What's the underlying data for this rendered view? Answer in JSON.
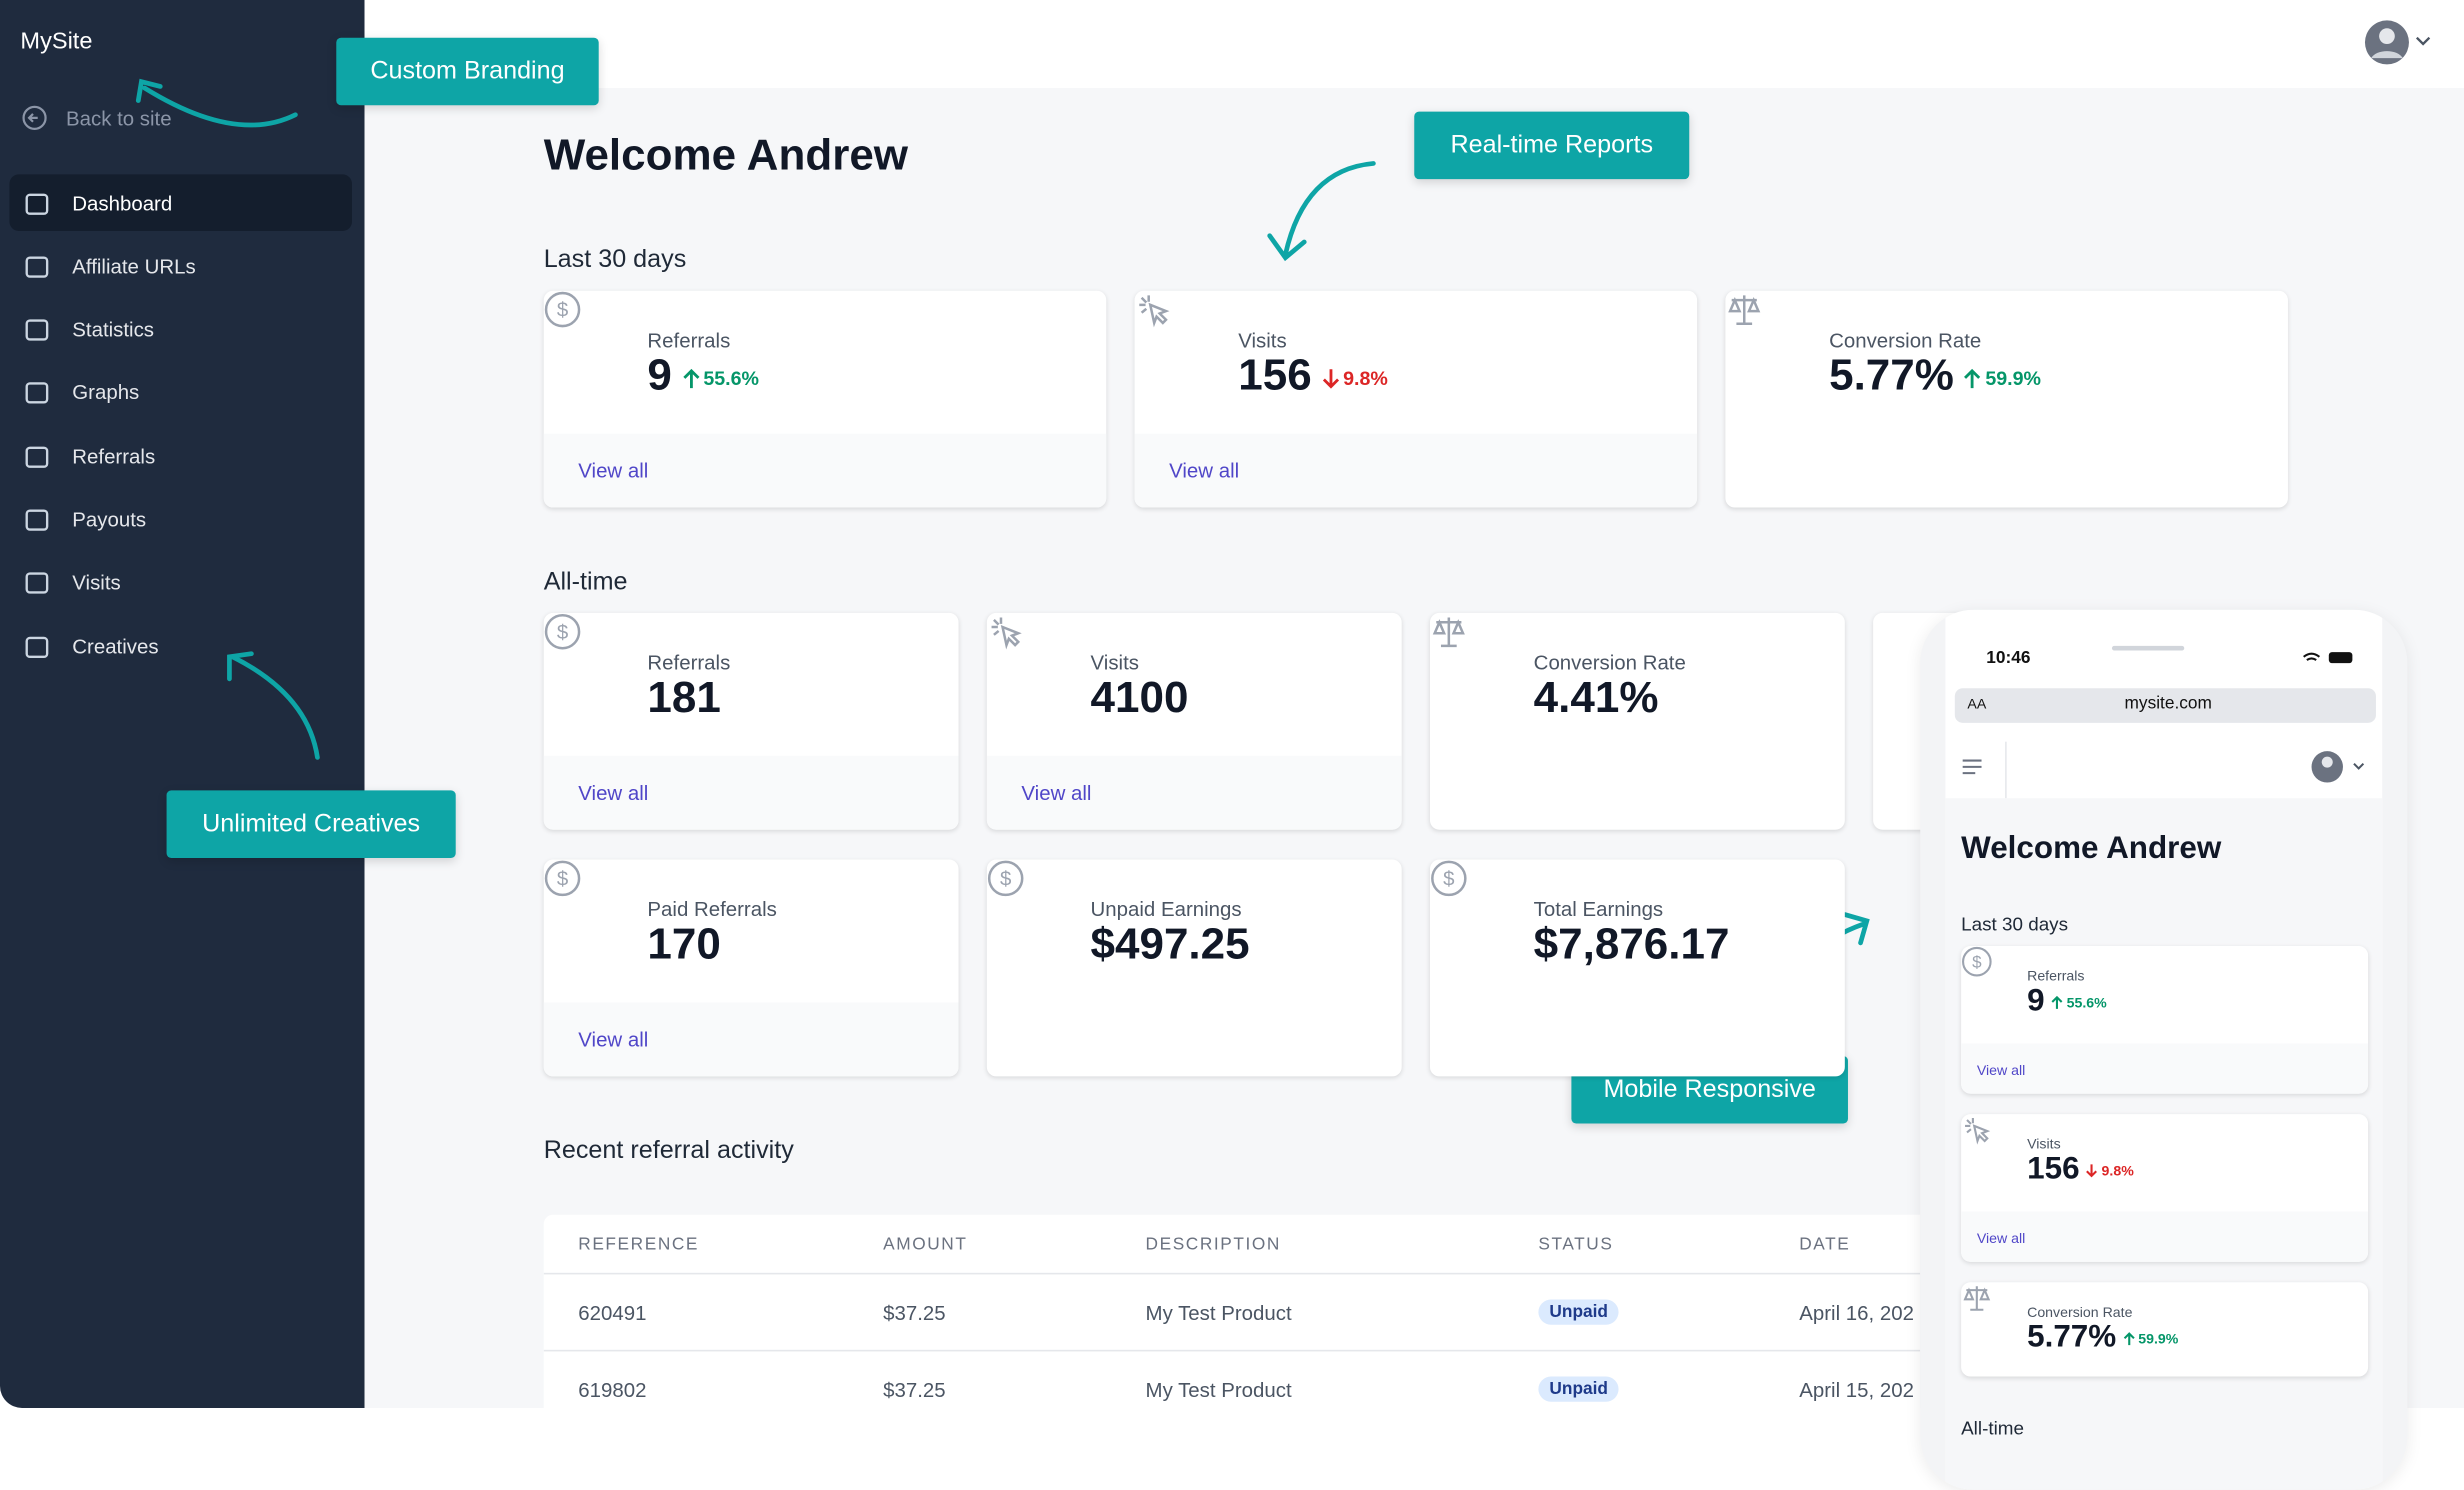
{
  "brand": "MySite",
  "back": "Back to site",
  "nav": [
    "Dashboard",
    "Affiliate URLs",
    "Statistics",
    "Graphs",
    "Referrals",
    "Payouts",
    "Visits",
    "Creatives"
  ],
  "active_nav": 0,
  "callouts": [
    "Custom Branding",
    "Real-time Reports",
    "Unlimited Creatives",
    "Mobile Responsive"
  ],
  "welcome": "Welcome Andrew",
  "last30": {
    "title": "Last 30 days",
    "cards": [
      {
        "icon": "dollar",
        "label": "Referrals",
        "value": "9",
        "change": "55.6%",
        "dir": "up",
        "link": "View all"
      },
      {
        "icon": "cursor",
        "label": "Visits",
        "value": "156",
        "change": "9.8%",
        "dir": "down",
        "link": "View all"
      },
      {
        "icon": "scale",
        "label": "Conversion Rate",
        "value": "5.77%",
        "change": "59.9%",
        "dir": "up"
      }
    ]
  },
  "alltime": {
    "title": "All-time",
    "cards": [
      {
        "icon": "dollar",
        "label": "Referrals",
        "value": "181",
        "link": "View all"
      },
      {
        "icon": "cursor",
        "label": "Visits",
        "value": "4100",
        "link": "View all"
      },
      {
        "icon": "scale",
        "label": "Conversion Rate",
        "value": "4.41%"
      },
      {
        "icon": "dollar",
        "label": "Paid Referrals",
        "value": "170",
        "link": "View all"
      },
      {
        "icon": "dollar",
        "label": "Unpaid Earnings",
        "value": "$497.25"
      },
      {
        "icon": "dollar",
        "label": "Total Earnings",
        "value": "$7,876.17"
      }
    ]
  },
  "recent": {
    "title": "Recent referral activity",
    "columns": [
      "REFERENCE",
      "AMOUNT",
      "DESCRIPTION",
      "STATUS",
      "DATE"
    ],
    "rows": [
      [
        "620491",
        "$37.25",
        "My Test Product",
        "Unpaid",
        "April 16, 202"
      ],
      [
        "619802",
        "$37.25",
        "My Test Product",
        "Unpaid",
        "April 15, 202"
      ]
    ]
  },
  "mobile": {
    "time": "10:46",
    "text_size": "AA",
    "url": "mysite.com"
  }
}
